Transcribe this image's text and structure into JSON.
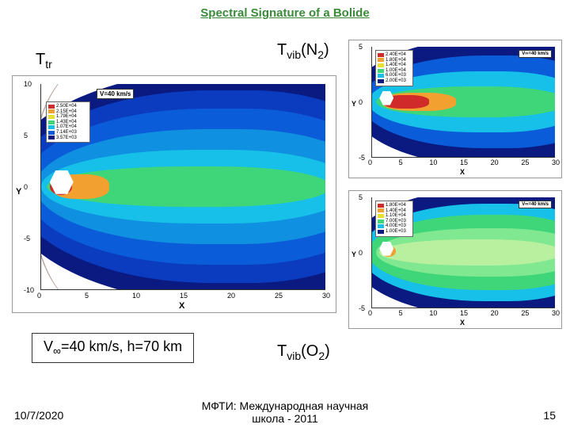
{
  "title": "Spectral Signature of a Bolide",
  "labels": {
    "ttr": "T",
    "ttr_sub": "tr",
    "tvib_n2": "T",
    "tvib_n2_sub1": "vib",
    "tvib_n2_mid": "(N",
    "tvib_n2_sub2": "2",
    "tvib_n2_end": ")",
    "tvib_o2": "T",
    "tvib_o2_sub1": "vib",
    "tvib_o2_mid": "(O",
    "tvib_o2_sub2": "2",
    "tvib_o2_end": ")"
  },
  "plot_main": {
    "x_axis": "X",
    "y_axis": "Y",
    "v_label": "V=40 km/s",
    "xticks": [
      "0",
      "5",
      "10",
      "15",
      "20",
      "25",
      "30"
    ],
    "yticks": [
      "-10",
      "-5",
      "0",
      "5",
      "10"
    ],
    "colors": {
      "outer": "#0a1a80",
      "mid": "#0b5cd8",
      "inner": "#16c0e8",
      "hot": "#d12a2a",
      "warm": "#f2a030",
      "cool": "#3fd67a"
    },
    "legend": [
      {
        "c": "#d12a2a",
        "t": "2.50E+04"
      },
      {
        "c": "#f2a030",
        "t": "2.15E+04"
      },
      {
        "c": "#e8e030",
        "t": "1.79E+04"
      },
      {
        "c": "#3fd67a",
        "t": "1.43E+04"
      },
      {
        "c": "#16c0e8",
        "t": "1.07E+04"
      },
      {
        "c": "#0b5cd8",
        "t": "7.14E+03"
      },
      {
        "c": "#0a1a80",
        "t": "3.57E+03"
      }
    ]
  },
  "plot_n2": {
    "x_axis": "X",
    "y_axis": "Y",
    "v_label": "V∞=40 km/s",
    "xticks": [
      "0",
      "5",
      "10",
      "15",
      "20",
      "25",
      "30"
    ],
    "yticks": [
      "-5",
      "0",
      "5"
    ],
    "colors": {
      "outer": "#0a1a80",
      "mid": "#16c0e8",
      "core": "#d12a2a",
      "warm": "#f2a030"
    },
    "legend": [
      {
        "c": "#d12a2a",
        "t": "2.40E+04"
      },
      {
        "c": "#f2a030",
        "t": "1.80E+04"
      },
      {
        "c": "#e8e030",
        "t": "1.40E+04"
      },
      {
        "c": "#3fd67a",
        "t": "1.00E+04"
      },
      {
        "c": "#16c0e8",
        "t": "6.00E+03"
      },
      {
        "c": "#0a1a80",
        "t": "2.00E+03"
      }
    ]
  },
  "plot_o2": {
    "x_axis": "X",
    "y_axis": "Y",
    "v_label": "V∞=40 km/s",
    "xticks": [
      "0",
      "5",
      "10",
      "15",
      "20",
      "25",
      "30"
    ],
    "yticks": [
      "-5",
      "0",
      "5"
    ],
    "colors": {
      "outer": "#0a1a80",
      "mid": "#3fd67a",
      "inner": "#7fe890",
      "core": "#d12a2a"
    },
    "legend": [
      {
        "c": "#d12a2a",
        "t": "1.80E+04"
      },
      {
        "c": "#f2a030",
        "t": "1.40E+04"
      },
      {
        "c": "#e8e030",
        "t": "1.10E+04"
      },
      {
        "c": "#3fd67a",
        "t": "7.00E+03"
      },
      {
        "c": "#16c0e8",
        "t": "4.00E+03"
      },
      {
        "c": "#0a1a80",
        "t": "1.00E+03"
      }
    ]
  },
  "caption": {
    "v": "V",
    "sub": "∞",
    "rest": "=40 km/s,   h=70 km"
  },
  "footer": {
    "date": "10/7/2020",
    "center1": "МФТИ: Международная научная",
    "center2": "школа - 2011",
    "page": "15"
  }
}
